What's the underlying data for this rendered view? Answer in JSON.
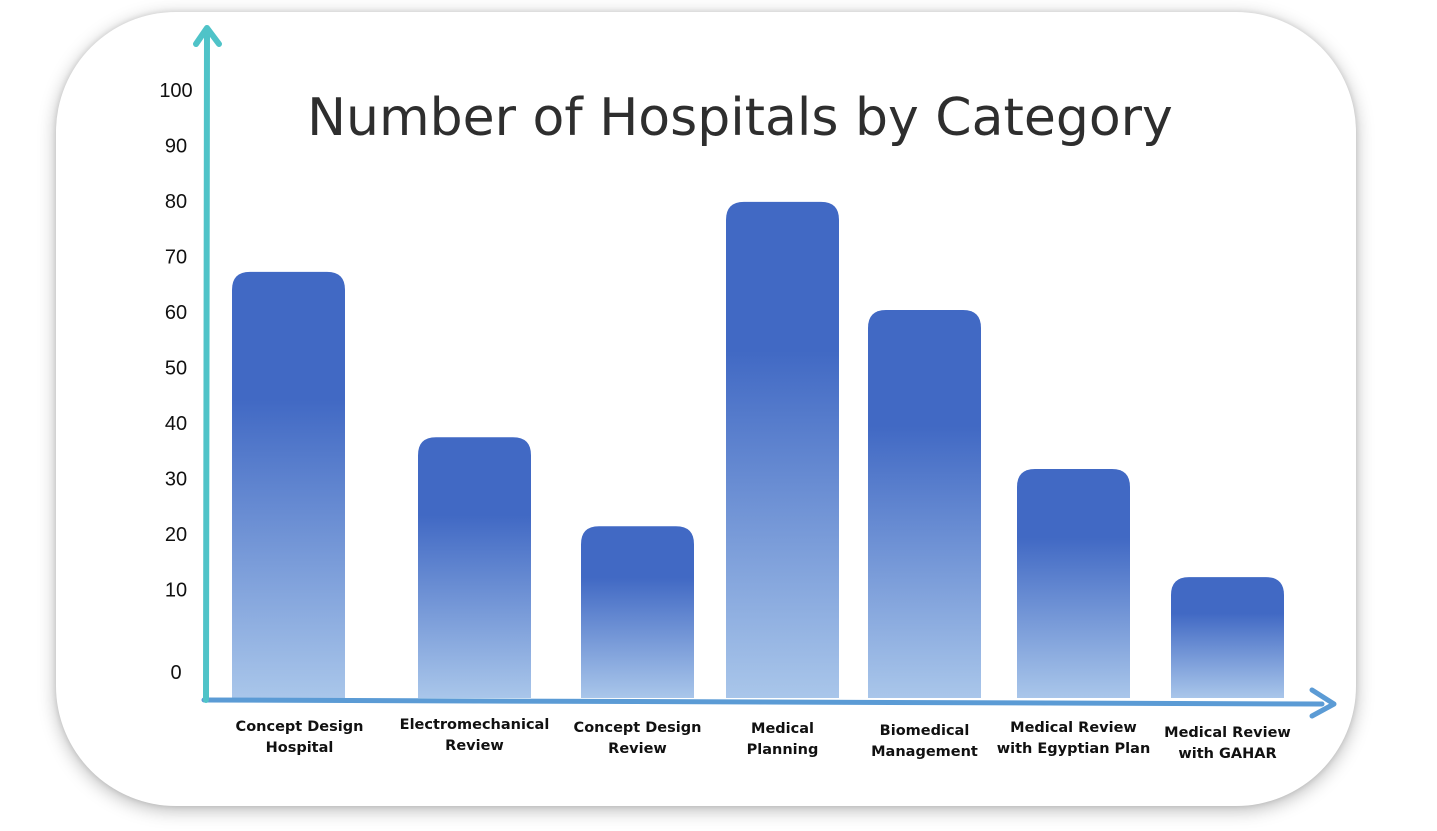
{
  "chart_data": {
    "type": "bar",
    "title": "Number of Hospitals by Category",
    "xlabel": "",
    "ylabel": "",
    "ylim": [
      0,
      100
    ],
    "yticks": [
      0,
      10,
      20,
      30,
      40,
      50,
      60,
      70,
      80,
      90,
      100
    ],
    "grid": false,
    "legend": "none",
    "categories": [
      [
        "Concept Design",
        "Hospital"
      ],
      [
        "Electromechanical",
        "Review"
      ],
      [
        "Concept Design",
        "Review"
      ],
      [
        "Medical",
        "Planning"
      ],
      [
        "Biomedical",
        "Management"
      ],
      [
        "Medical Review",
        "with Egyptian Plan"
      ],
      [
        "Medical Review",
        "with GAHAR"
      ]
    ],
    "values": [
      67,
      41,
      27,
      78,
      61,
      36,
      19
    ],
    "colors": {
      "bar_top": "#4169c4",
      "bar_bottom": "#a9c6ea",
      "y_axis": "#4fc3c8",
      "x_axis": "#5b9bd5"
    }
  }
}
